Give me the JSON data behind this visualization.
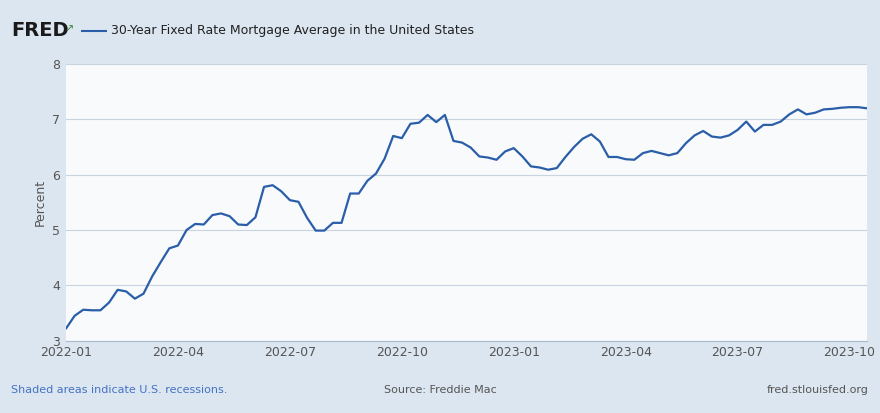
{
  "title": "30-Year Fixed Rate Mortgage Average in the United States",
  "ylabel": "Percent",
  "ylim": [
    3,
    8
  ],
  "yticks": [
    3,
    4,
    5,
    6,
    7,
    8
  ],
  "line_color": "#2a5ea8",
  "bg_color": "#dce6f0",
  "plot_bg_color": "#f8fafc",
  "grid_color": "#c8d4e0",
  "footer_left": "Shaded areas indicate U.S. recessions.",
  "footer_center": "Source: Freddie Mac",
  "footer_right": "fred.stlouisfed.org",
  "footer_color": "#4472c4",
  "values": [
    3.22,
    3.45,
    3.56,
    3.55,
    3.55,
    3.69,
    3.92,
    3.89,
    3.76,
    3.85,
    4.16,
    4.42,
    4.67,
    4.72,
    5.0,
    5.11,
    5.1,
    5.27,
    5.3,
    5.25,
    5.1,
    5.09,
    5.23,
    5.78,
    5.81,
    5.7,
    5.54,
    5.51,
    5.22,
    4.99,
    4.99,
    5.13,
    5.13,
    5.66,
    5.66,
    5.89,
    6.02,
    6.29,
    6.7,
    6.66,
    6.92,
    6.94,
    7.08,
    6.95,
    7.08,
    6.61,
    6.58,
    6.49,
    6.33,
    6.31,
    6.27,
    6.42,
    6.48,
    6.33,
    6.15,
    6.13,
    6.09,
    6.12,
    6.32,
    6.5,
    6.65,
    6.73,
    6.6,
    6.32,
    6.32,
    6.28,
    6.27,
    6.39,
    6.43,
    6.39,
    6.35,
    6.39,
    6.57,
    6.71,
    6.79,
    6.69,
    6.67,
    6.71,
    6.81,
    6.96,
    6.78,
    6.9,
    6.9,
    6.96,
    7.09,
    7.18,
    7.09,
    7.12,
    7.18,
    7.19,
    7.21,
    7.22,
    7.22,
    7.2
  ],
  "xtick_positions": [
    0,
    13,
    26,
    39,
    52,
    65,
    78,
    91
  ],
  "xtick_labels": [
    "2022-01",
    "2022-04",
    "2022-07",
    "2022-10",
    "2023-01",
    "2023-04",
    "2023-07",
    "2023-10"
  ]
}
